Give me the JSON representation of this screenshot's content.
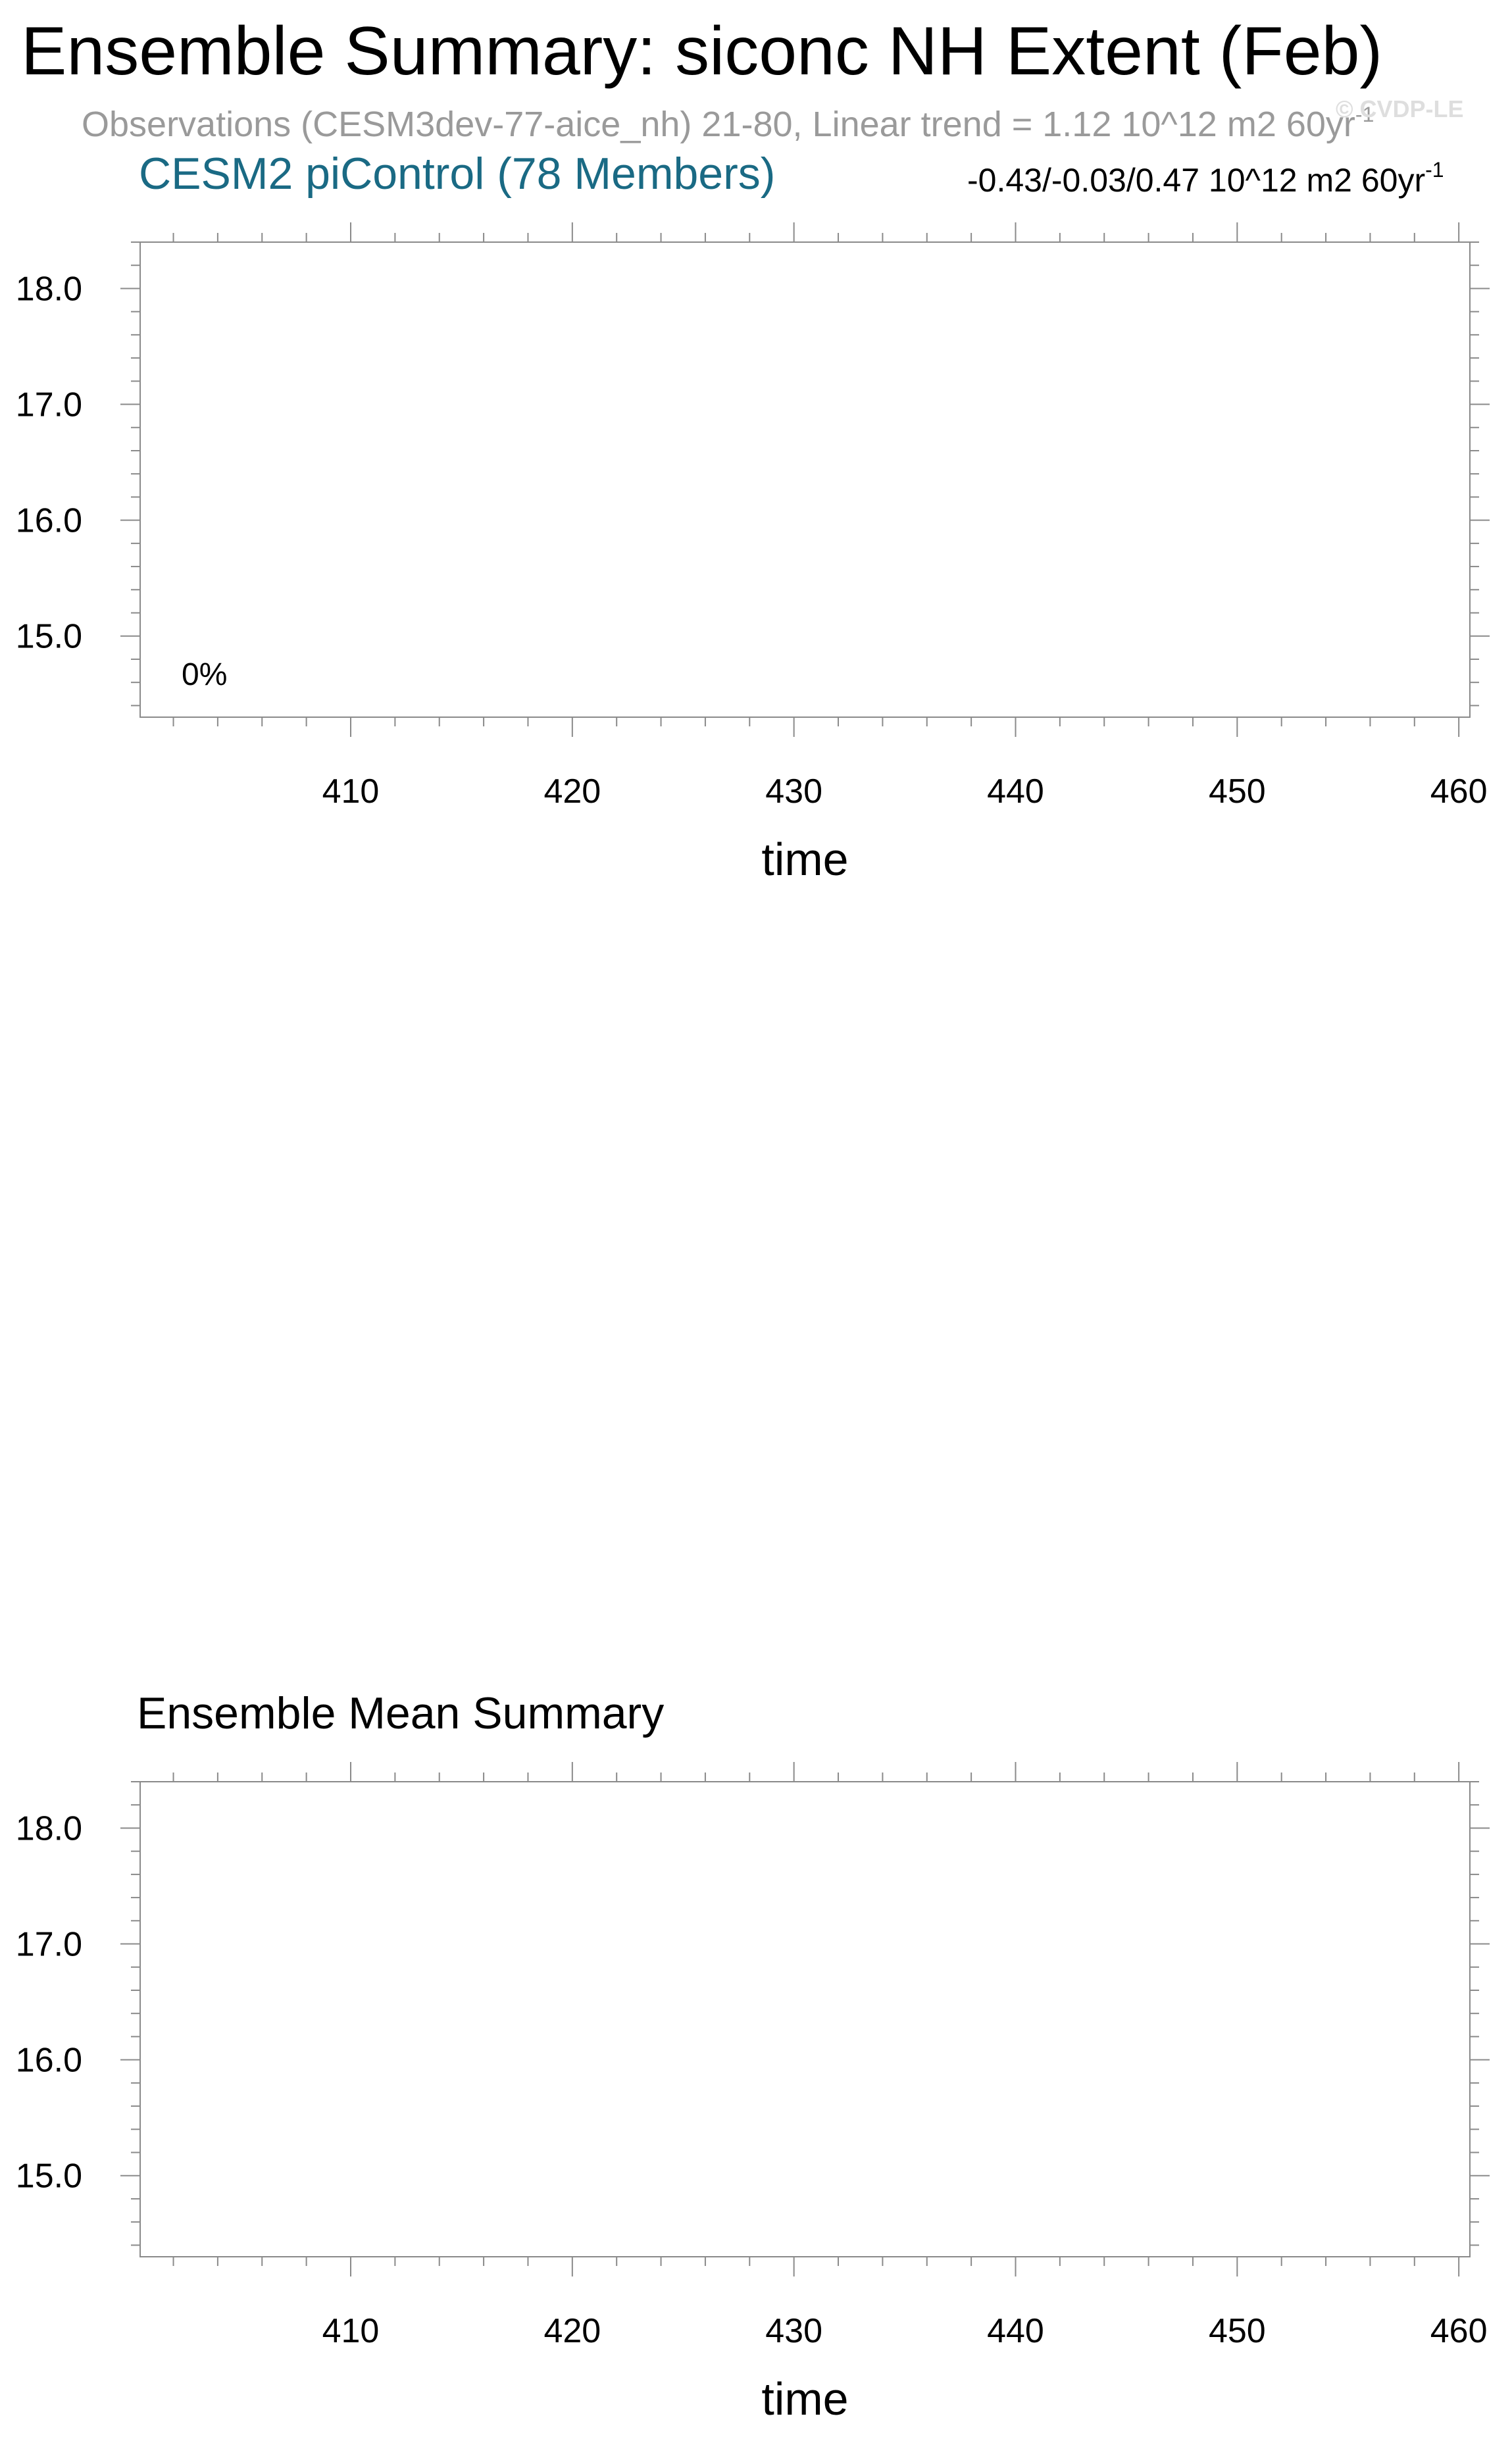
{
  "header": {
    "title": "Ensemble Summary: siconc NH Extent (Feb)",
    "subtitle": "Observations (CESM3dev-77-aice_nh) 21-80, Linear trend = 1.12 10^12 m2 60yr",
    "subtitle_sup": "-1",
    "watermark": "© CVDP-LE"
  },
  "chart_data": [
    {
      "type": "line",
      "title": "CESM2 piControl (78 Members)",
      "title_color": "#1a6a84",
      "annotation_right": "-0.43/-0.03/0.47 10^12 m2 60yr",
      "annotation_right_sup": "-1",
      "annotation_inside": "0%",
      "xlabel": "time",
      "ylabel": "",
      "xlim": [
        400.5,
        460.5
      ],
      "ylim": [
        14.3,
        18.4
      ],
      "xticks": [
        410,
        420,
        430,
        440,
        450,
        460
      ],
      "xtick_labels": [
        "410",
        "420",
        "430",
        "440",
        "450",
        "460"
      ],
      "yticks": [
        15.0,
        16.0,
        17.0,
        18.0
      ],
      "ytick_labels": [
        "15.0",
        "16.0",
        "17.0",
        "18.0"
      ],
      "series": [],
      "grid": false
    },
    {
      "type": "line",
      "title": "Ensemble Mean Summary",
      "xlabel": "time",
      "ylabel": "",
      "xlim": [
        400.5,
        460.5
      ],
      "ylim": [
        14.3,
        18.4
      ],
      "xticks": [
        410,
        420,
        430,
        440,
        450,
        460
      ],
      "xtick_labels": [
        "410",
        "420",
        "430",
        "440",
        "450",
        "460"
      ],
      "yticks": [
        15.0,
        16.0,
        17.0,
        18.0
      ],
      "ytick_labels": [
        "15.0",
        "16.0",
        "17.0",
        "18.0"
      ],
      "series": [],
      "grid": false
    }
  ]
}
